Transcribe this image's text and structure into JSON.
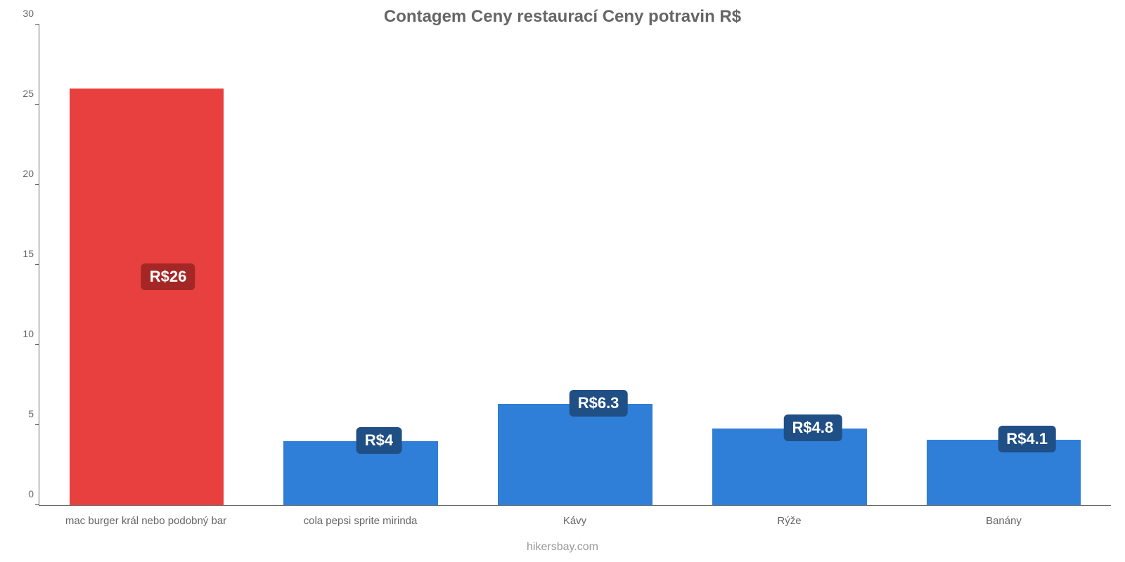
{
  "chart": {
    "type": "bar",
    "title": "Contagem Ceny restaurací Ceny potravin R$",
    "title_fontsize": 24,
    "title_color": "#666666",
    "footer": "hikersbay.com",
    "footer_color": "#999999",
    "background_color": "#ffffff",
    "axis_color": "#666666",
    "tick_label_color": "#666666",
    "tick_label_fontsize": 14,
    "x_label_fontsize": 15,
    "ylim": [
      0,
      30
    ],
    "ytick_step": 5,
    "yticks": [
      0,
      5,
      10,
      15,
      20,
      25,
      30
    ],
    "bar_width_pct": 72,
    "value_label_fontsize": 22,
    "value_label_text_color": "#ffffff",
    "value_label_radius": 6,
    "categories": [
      "mac burger král nebo podobný bar",
      "cola pepsi sprite mirinda",
      "Kávy",
      "Rýže",
      "Banány"
    ],
    "values": [
      26,
      4,
      6.3,
      4.8,
      4.1
    ],
    "value_labels": [
      "R$26",
      "R$4",
      "R$6.3",
      "R$4.8",
      "R$4.1"
    ],
    "bar_colors": [
      "#e8403e",
      "#2f7ed8",
      "#2f7ed8",
      "#2f7ed8",
      "#2f7ed8"
    ],
    "value_label_bg_colors": [
      "#a52725",
      "#204f85",
      "#204f85",
      "#204f85",
      "#204f85"
    ]
  }
}
